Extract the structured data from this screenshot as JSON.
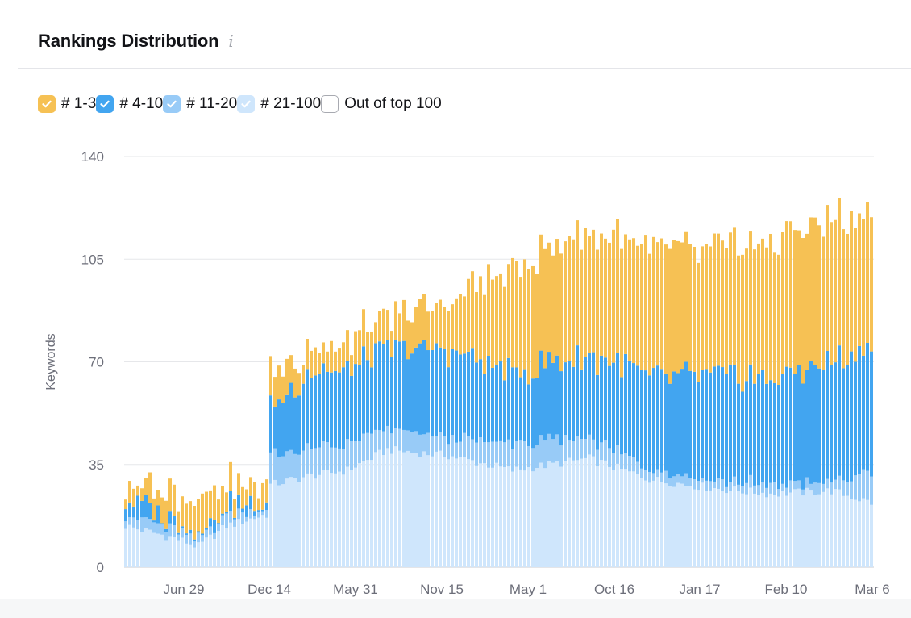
{
  "header": {
    "title": "Rankings Distribution",
    "info_icon": "info-icon"
  },
  "legend": [
    {
      "label": "# 1-3",
      "color": "#f6c154",
      "checked": true
    },
    {
      "label": "# 4-10",
      "color": "#42a5f0",
      "checked": true
    },
    {
      "label": "# 11-20",
      "color": "#98cbf7",
      "checked": true
    },
    {
      "label": "# 21-100",
      "color": "#cfe6fc",
      "checked": true
    },
    {
      "label": "Out of top 100",
      "color": "#ffffff",
      "checked": false
    }
  ],
  "chart_data": {
    "type": "bar",
    "stacked": true,
    "ylabel": "Keywords",
    "ylim": [
      0,
      140
    ],
    "yticks": [
      0,
      35,
      70,
      105,
      140
    ],
    "xtick_labels": [
      "Jun 29",
      "Dec 14",
      "May 31",
      "Nov 15",
      "May 1",
      "Oct 16",
      "Jan 17",
      "Feb 10",
      "Mar 6"
    ],
    "grid": true,
    "series_order": [
      "# 21-100",
      "# 11-20",
      "# 4-10",
      "# 1-3"
    ],
    "colors": {
      "# 1-3": "#f6c154",
      "# 4-10": "#42a5f0",
      "# 11-20": "#98cbf7",
      "# 21-100": "#cfe6fc"
    },
    "keypoints": [
      {
        "i": 0,
        "t21": 14,
        "t11": 4,
        "t4": 6,
        "t13": 5
      },
      {
        "i": 12,
        "t21": 10,
        "t11": 3,
        "t4": 2,
        "t13": 10
      },
      {
        "i": 18,
        "t21": 7,
        "t11": 2,
        "t4": 1,
        "t13": 12
      },
      {
        "i": 25,
        "t21": 14,
        "t11": 4,
        "t4": 3,
        "t13": 7
      },
      {
        "i": 35,
        "t21": 18,
        "t11": 2,
        "t4": 1,
        "t13": 7
      },
      {
        "i": 36,
        "t21": 28,
        "t11": 10,
        "t4": 16,
        "t13": 12
      },
      {
        "i": 45,
        "t21": 31,
        "t11": 9,
        "t4": 26,
        "t13": 8
      },
      {
        "i": 55,
        "t21": 33,
        "t11": 9,
        "t4": 25,
        "t13": 10
      },
      {
        "i": 65,
        "t21": 40,
        "t11": 7,
        "t4": 27,
        "t13": 10
      },
      {
        "i": 80,
        "t21": 38,
        "t11": 6,
        "t4": 30,
        "t13": 17
      },
      {
        "i": 96,
        "t21": 33,
        "t11": 9,
        "t4": 24,
        "t13": 36
      },
      {
        "i": 115,
        "t21": 37,
        "t11": 7,
        "t4": 28,
        "t13": 42
      },
      {
        "i": 130,
        "t21": 30,
        "t11": 4,
        "t4": 32,
        "t13": 44
      },
      {
        "i": 145,
        "t21": 27,
        "t11": 3,
        "t4": 36,
        "t13": 43
      },
      {
        "i": 160,
        "t21": 25,
        "t11": 3,
        "t4": 36,
        "t13": 47
      },
      {
        "i": 175,
        "t21": 26,
        "t11": 3,
        "t4": 41,
        "t13": 48
      },
      {
        "i": 185,
        "t21": 22,
        "t11": 10,
        "t4": 43,
        "t13": 45
      }
    ],
    "bar_count": 186
  }
}
